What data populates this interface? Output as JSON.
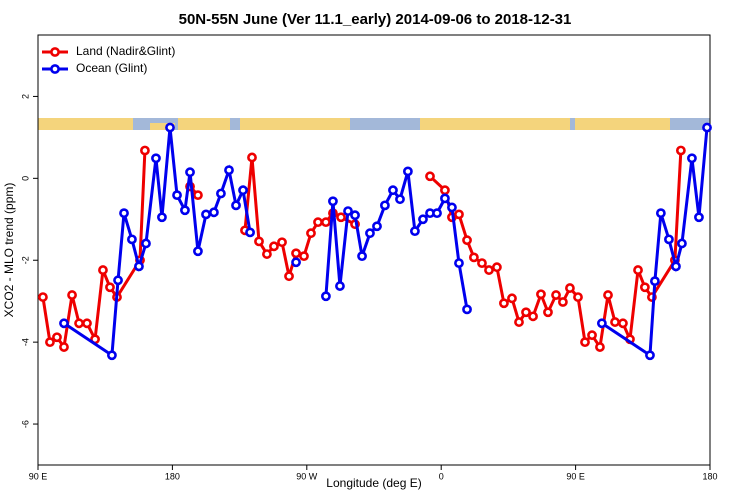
{
  "chart_data": {
    "type": "line",
    "title": "50N-55N June (Ver 11.1_early)   2014-09-06 to 2018-12-31",
    "x_label": "Longitude (deg E)",
    "y_label": "XCO2 - MLO trend (ppm)",
    "xlim": [
      90,
      540
    ],
    "xticks": [
      {
        "value": 90,
        "label": "90 E"
      },
      {
        "value": 180,
        "label": "180"
      },
      {
        "value": 270,
        "label": "90 W"
      },
      {
        "value": 360,
        "label": "0"
      },
      {
        "value": 450,
        "label": "90 E"
      },
      {
        "value": 540,
        "label": "180"
      }
    ],
    "ylim": [
      -7,
      3.5
    ],
    "yticks": [
      2,
      0,
      -2,
      -4,
      -6
    ],
    "legend": "topleft",
    "series": [
      {
        "name": "Land (Nadir&Glint)",
        "color": "#ee0000",
        "x": [
          93.3,
          98.0,
          102.7,
          107.4,
          112.8,
          117.5,
          122.8,
          128.2,
          133.5,
          138.2,
          142.9,
          158.3,
          161.6,
          null,
          191.8,
          197.1,
          null,
          228.6,
          233.3,
          238.0,
          243.3,
          248.0,
          253.4,
          258.1,
          262.8,
          268.1,
          272.8,
          277.5,
          282.8,
          287.5,
          292.9,
          302.3,
          null,
          352.5,
          362.5,
          367.2,
          371.9,
          377.3,
          381.9,
          387.3,
          392.0,
          397.3,
          402.0,
          407.4,
          412.1,
          416.8,
          421.5,
          426.8,
          431.5,
          436.9,
          441.5,
          446.2,
          451.6,
          456.3,
          461.0,
          466.3,
          471.7,
          476.4,
          481.7,
          486.4,
          491.8,
          496.4,
          501.1,
          516.5,
          520.5
        ],
        "values": [
          -2.9,
          -4.0,
          -3.88,
          -4.12,
          -2.85,
          -3.54,
          -3.54,
          -3.93,
          -2.24,
          -2.66,
          -2.9,
          -2.0,
          0.68,
          null,
          -0.2,
          -0.41,
          null,
          -1.27,
          0.51,
          -1.54,
          -1.85,
          -1.66,
          -1.56,
          -2.39,
          -1.83,
          -1.9,
          -1.34,
          -1.07,
          -1.07,
          -0.85,
          -0.95,
          -1.12,
          null,
          0.05,
          -0.29,
          -0.95,
          -0.88,
          -1.51,
          -1.93,
          -2.07,
          -2.24,
          -2.17,
          -3.05,
          -2.93,
          -3.51,
          -3.27,
          -3.37,
          -2.83,
          -3.27,
          -2.85,
          -3.02,
          -2.68,
          -2.9,
          -4.0,
          -3.83,
          -4.12,
          -2.85,
          -3.51,
          -3.54,
          -3.93,
          -2.24,
          -2.66,
          -2.9,
          -2.0,
          0.68
        ]
      },
      {
        "name": "Ocean (Glint)",
        "color": "#0000ee",
        "x": [
          107.4,
          139.5,
          143.6,
          147.6,
          152.9,
          157.6,
          162.3,
          169.0,
          173.0,
          178.4,
          183.1,
          188.4,
          191.8,
          197.1,
          202.5,
          207.8,
          212.5,
          217.9,
          222.6,
          227.3,
          232.0,
          null,
          262.8,
          null,
          282.8,
          287.5,
          292.2,
          297.6,
          302.3,
          307.0,
          312.3,
          317.0,
          322.3,
          327.7,
          332.4,
          337.7,
          342.4,
          347.8,
          352.5,
          357.2,
          362.5,
          367.2,
          371.9,
          377.3,
          null,
          467.6,
          499.8,
          503.1,
          507.1,
          512.5,
          517.2,
          521.2,
          527.9,
          532.6,
          538.0
        ],
        "values": [
          -3.54,
          -4.32,
          -2.49,
          -0.85,
          -1.49,
          -2.15,
          -1.59,
          0.49,
          -0.95,
          1.24,
          -0.41,
          -0.78,
          0.15,
          -1.78,
          -0.88,
          -0.83,
          -0.37,
          0.2,
          -0.66,
          -0.29,
          -1.32,
          null,
          -2.05,
          null,
          -2.88,
          -0.56,
          -2.63,
          -0.8,
          -0.9,
          -1.9,
          -1.34,
          -1.17,
          -0.66,
          -0.29,
          -0.51,
          0.17,
          -1.29,
          -1.0,
          -0.85,
          -0.85,
          -0.49,
          -0.71,
          -2.07,
          -3.2,
          null,
          -3.54,
          -4.32,
          -2.51,
          -0.85,
          -1.49,
          -2.15,
          -1.59,
          0.49,
          -0.95,
          1.24
        ]
      }
    ]
  }
}
